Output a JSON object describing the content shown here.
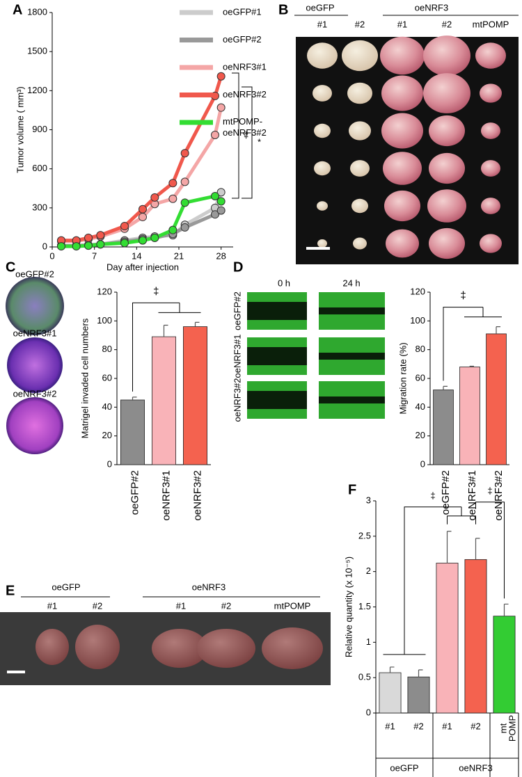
{
  "panel_letters": [
    "A",
    "B",
    "C",
    "D",
    "E",
    "F"
  ],
  "photo_labels": {
    "B": {
      "groups": [
        "oeGFP",
        "oeNRF3"
      ],
      "lanes": [
        "#1",
        "#2",
        "#1",
        "#2",
        "mtPOMP"
      ]
    },
    "C": {
      "rows": [
        "oeGFP#2",
        "oeNRF3#1",
        "oeNRF3#2"
      ]
    },
    "D": {
      "columns": [
        "0 h",
        "24 h"
      ],
      "rows": [
        "oeGFP#2",
        "oeNRF3#1",
        "oeNRF3#2"
      ]
    },
    "E": {
      "groups": [
        "oeGFP",
        "oeNRF3"
      ],
      "lanes": [
        "#1",
        "#2",
        "#1",
        "#2",
        "mtPOMP"
      ]
    }
  },
  "chart_data": [
    {
      "type": "line",
      "x_label": "Day after injection",
      "y_label": "Tumor volume ( mm³)",
      "x": [
        1.5,
        4,
        6,
        8,
        12,
        15,
        17,
        20,
        22,
        27,
        28
      ],
      "xlim": [
        0,
        30
      ],
      "xticks": [
        0,
        7,
        14,
        21,
        28
      ],
      "ylim": [
        0,
        1800
      ],
      "yticks": [
        0,
        300,
        600,
        900,
        1200,
        1500,
        1800
      ],
      "annotations": [
        "‡",
        "*"
      ],
      "series": [
        {
          "name": "oeGFP#1",
          "color": "#cccccc",
          "values": [
            10,
            10,
            15,
            20,
            50,
            70,
            80,
            90,
            170,
            300,
            420
          ]
        },
        {
          "name": "oeGFP#2",
          "color": "#999999",
          "values": [
            10,
            10,
            15,
            20,
            40,
            60,
            70,
            100,
            150,
            250,
            280
          ]
        },
        {
          "name": "oeNRF3#1",
          "color": "#f4a6a6",
          "values": [
            45,
            45,
            60,
            80,
            140,
            230,
            330,
            370,
            500,
            860,
            1070
          ]
        },
        {
          "name": "oeNRF3#2",
          "color": "#f0584c",
          "values": [
            50,
            50,
            70,
            90,
            160,
            290,
            380,
            490,
            720,
            1160,
            1310
          ]
        },
        {
          "name": "mtPOMP-oeNRF3#2",
          "color": "#33dd33",
          "values": [
            5,
            5,
            10,
            20,
            30,
            50,
            70,
            130,
            340,
            390,
            350
          ]
        }
      ]
    },
    {
      "type": "bar",
      "y_label": "Matrigel invaded cell numbers",
      "categories": [
        "oeGFP#2",
        "oeNRF3#1",
        "oeNRF3#2"
      ],
      "values": [
        45,
        89,
        96
      ],
      "errors": [
        2,
        8,
        3
      ],
      "colors": [
        "#8c8c8c",
        "#f9b3b8",
        "#f4624f"
      ],
      "ylim": [
        0,
        120
      ],
      "yticks": [
        0,
        20,
        40,
        60,
        80,
        100,
        120
      ],
      "annotations": [
        "‡"
      ]
    },
    {
      "type": "bar",
      "y_label": "Migration rate (%)",
      "categories": [
        "oeGFP#2",
        "oeNRF3#1",
        "oeNRF3#2"
      ],
      "values": [
        52,
        68,
        91
      ],
      "errors": [
        2.5,
        0.5,
        5
      ],
      "colors": [
        "#8c8c8c",
        "#f9b3b8",
        "#f4624f"
      ],
      "ylim": [
        0,
        120
      ],
      "yticks": [
        0,
        20,
        40,
        60,
        80,
        100,
        120
      ],
      "annotations": [
        "‡"
      ]
    },
    {
      "type": "bar",
      "y_label": "Relative quantity (x 10⁻⁵)",
      "categories": [
        "#1",
        "#2",
        "#1",
        "#2",
        "mt POMP"
      ],
      "group_labels": [
        "oeGFP",
        "oeNRF3"
      ],
      "values": [
        0.57,
        0.51,
        2.12,
        2.17,
        1.37
      ],
      "errors": [
        0.08,
        0.1,
        0.45,
        0.3,
        0.17
      ],
      "colors": [
        "#d9d9d9",
        "#8c8c8c",
        "#f9b3b8",
        "#f4624f",
        "#33cc33"
      ],
      "ylim": [
        0,
        3
      ],
      "yticks": [
        0,
        0.5,
        1,
        1.5,
        2,
        2.5,
        3
      ],
      "annotations": [
        "‡",
        "‡"
      ]
    }
  ]
}
